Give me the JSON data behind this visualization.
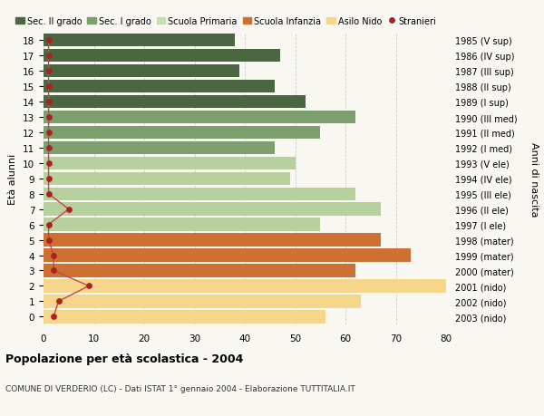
{
  "ages": [
    18,
    17,
    16,
    15,
    14,
    13,
    12,
    11,
    10,
    9,
    8,
    7,
    6,
    5,
    4,
    3,
    2,
    1,
    0
  ],
  "bar_values": [
    38,
    47,
    39,
    46,
    52,
    62,
    55,
    46,
    50,
    49,
    62,
    67,
    55,
    67,
    73,
    62,
    80,
    63,
    56
  ],
  "bar_colors": [
    "#4a6741",
    "#4a6741",
    "#4a6741",
    "#4a6741",
    "#4a6741",
    "#7d9e6e",
    "#7d9e6e",
    "#7d9e6e",
    "#b8d09e",
    "#b8d09e",
    "#b8d09e",
    "#b8d09e",
    "#b8d09e",
    "#cc7033",
    "#cc7033",
    "#cc7033",
    "#f5d68a",
    "#f5d68a",
    "#f5d68a"
  ],
  "stranieri_values": [
    1,
    1,
    1,
    1,
    1,
    1,
    1,
    1,
    1,
    1,
    1,
    5,
    1,
    1,
    2,
    2,
    9,
    3,
    2
  ],
  "right_labels": [
    "1985 (V sup)",
    "1986 (IV sup)",
    "1987 (III sup)",
    "1988 (II sup)",
    "1989 (I sup)",
    "1990 (III med)",
    "1991 (II med)",
    "1992 (I med)",
    "1993 (V ele)",
    "1994 (IV ele)",
    "1995 (III ele)",
    "1996 (II ele)",
    "1997 (I ele)",
    "1998 (mater)",
    "1999 (mater)",
    "2000 (mater)",
    "2001 (nido)",
    "2002 (nido)",
    "2003 (nido)"
  ],
  "legend_labels": [
    "Sec. II grado",
    "Sec. I grado",
    "Scuola Primaria",
    "Scuola Infanzia",
    "Asilo Nido",
    "Stranieri"
  ],
  "legend_colors": [
    "#4a6741",
    "#7d9e6e",
    "#c8ddb0",
    "#cc7033",
    "#f5d68a",
    "#aa2222"
  ],
  "title": "Popolazione per età scolastica - 2004",
  "subtitle": "COMUNE DI VERDERIO (LC) - Dati ISTAT 1° gennaio 2004 - Elaborazione TUTTITALIA.IT",
  "ylabel": "Età alunni",
  "right_ylabel": "Anni di nascita",
  "xlim": [
    0,
    80
  ],
  "xticks": [
    0,
    10,
    20,
    30,
    40,
    50,
    60,
    70,
    80
  ],
  "bar_height": 0.85,
  "bg_color": "#f9f7f2",
  "grid_color": "#cccccc",
  "stranieri_color": "#aa2222",
  "stranieri_line_color": "#cc4444"
}
